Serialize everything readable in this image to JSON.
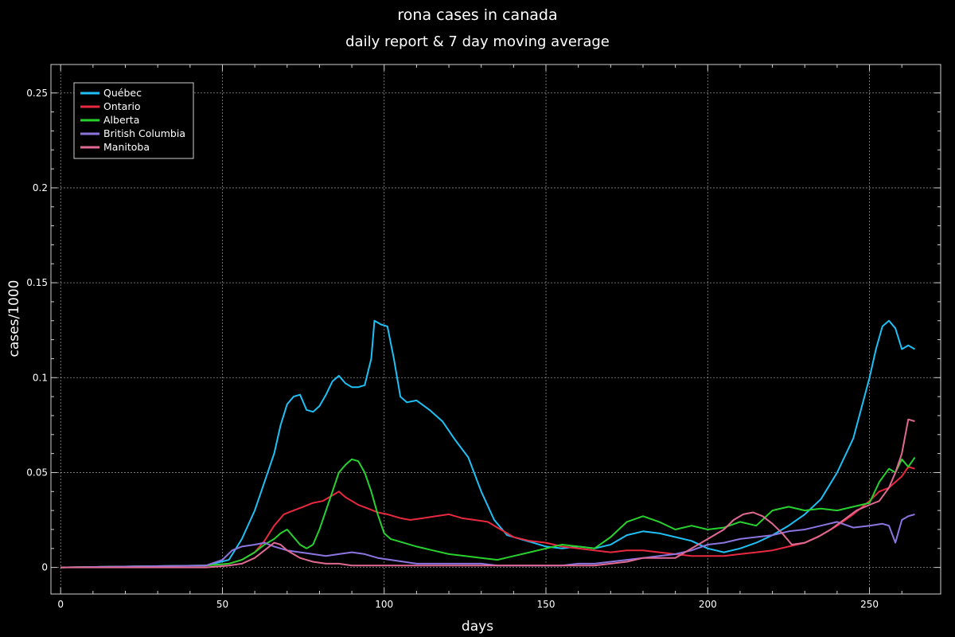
{
  "colors": {
    "background": "#000000",
    "foreground": "#ffffff",
    "grid": "#ffffff",
    "frame": "#d0d0d0"
  },
  "chart_data": {
    "type": "line",
    "title": "rona cases in canada",
    "subtitle": "daily report & 7 day moving average",
    "xlabel": "days",
    "ylabel": "cases/1000",
    "xlim": [
      -3,
      272
    ],
    "ylim": [
      -0.014,
      0.265
    ],
    "xticks": [
      0,
      50,
      100,
      150,
      200,
      250
    ],
    "xtick_labels": [
      "0",
      "50",
      "100",
      "150",
      "200",
      "250"
    ],
    "yticks": [
      0,
      0.05,
      0.1,
      0.15,
      0.2,
      0.25
    ],
    "ytick_labels": [
      "0",
      "0.05",
      "0.1",
      "0.15",
      "0.2",
      "0.25"
    ],
    "grid": true,
    "legend": "top-left",
    "series": [
      {
        "name": "Québec",
        "color": "#1ec0f5",
        "x": [
          0,
          45,
          52,
          56,
          60,
          63,
          66,
          68,
          70,
          72,
          74,
          76,
          78,
          80,
          82,
          84,
          86,
          88,
          90,
          92,
          94,
          96,
          97,
          99,
          101,
          103,
          105,
          107,
          110,
          114,
          118,
          122,
          126,
          130,
          134,
          138,
          142,
          146,
          150,
          155,
          160,
          165,
          170,
          175,
          180,
          185,
          190,
          195,
          200,
          205,
          210,
          215,
          220,
          225,
          230,
          235,
          240,
          245,
          250,
          252,
          254,
          256,
          258,
          260,
          262,
          264
        ],
        "values": [
          0,
          0.001,
          0.004,
          0.015,
          0.03,
          0.045,
          0.06,
          0.075,
          0.086,
          0.09,
          0.091,
          0.083,
          0.082,
          0.085,
          0.091,
          0.098,
          0.101,
          0.097,
          0.095,
          0.095,
          0.096,
          0.11,
          0.13,
          0.128,
          0.127,
          0.11,
          0.09,
          0.087,
          0.088,
          0.083,
          0.077,
          0.067,
          0.058,
          0.04,
          0.025,
          0.017,
          0.015,
          0.013,
          0.011,
          0.01,
          0.011,
          0.01,
          0.012,
          0.017,
          0.019,
          0.018,
          0.016,
          0.014,
          0.01,
          0.008,
          0.01,
          0.013,
          0.017,
          0.022,
          0.028,
          0.036,
          0.05,
          0.068,
          0.1,
          0.115,
          0.127,
          0.13,
          0.126,
          0.115,
          0.117,
          0.115
        ]
      },
      {
        "name": "Ontario",
        "color": "#e8293f",
        "x": [
          0,
          45,
          52,
          56,
          60,
          63,
          66,
          69,
          72,
          75,
          78,
          81,
          84,
          86,
          88,
          90,
          92,
          95,
          98,
          101,
          105,
          108,
          112,
          116,
          120,
          124,
          128,
          132,
          136,
          140,
          145,
          150,
          155,
          160,
          165,
          170,
          175,
          180,
          185,
          190,
          195,
          200,
          205,
          210,
          215,
          220,
          225,
          230,
          235,
          240,
          245,
          250,
          253,
          256,
          258,
          260,
          262,
          264
        ],
        "values": [
          0,
          0.001,
          0.002,
          0.004,
          0.008,
          0.014,
          0.022,
          0.028,
          0.03,
          0.032,
          0.034,
          0.035,
          0.038,
          0.04,
          0.037,
          0.035,
          0.033,
          0.031,
          0.029,
          0.028,
          0.026,
          0.025,
          0.026,
          0.027,
          0.028,
          0.026,
          0.025,
          0.024,
          0.02,
          0.016,
          0.014,
          0.013,
          0.011,
          0.01,
          0.009,
          0.008,
          0.009,
          0.009,
          0.008,
          0.007,
          0.006,
          0.006,
          0.006,
          0.007,
          0.008,
          0.009,
          0.011,
          0.013,
          0.017,
          0.022,
          0.028,
          0.035,
          0.04,
          0.042,
          0.045,
          0.048,
          0.053,
          0.052
        ]
      },
      {
        "name": "Alberta",
        "color": "#28d12e",
        "x": [
          0,
          45,
          52,
          56,
          60,
          63,
          66,
          68,
          70,
          72,
          74,
          76,
          78,
          80,
          82,
          84,
          86,
          88,
          90,
          92,
          94,
          96,
          98,
          100,
          102,
          106,
          110,
          115,
          120,
          125,
          130,
          135,
          140,
          145,
          150,
          155,
          160,
          165,
          170,
          175,
          180,
          185,
          190,
          195,
          200,
          205,
          210,
          215,
          220,
          225,
          230,
          235,
          240,
          245,
          250,
          253,
          256,
          258,
          260,
          262,
          264
        ],
        "values": [
          0,
          0.001,
          0.002,
          0.004,
          0.008,
          0.012,
          0.015,
          0.018,
          0.02,
          0.016,
          0.012,
          0.01,
          0.012,
          0.02,
          0.03,
          0.04,
          0.05,
          0.054,
          0.057,
          0.056,
          0.05,
          0.04,
          0.028,
          0.018,
          0.015,
          0.013,
          0.011,
          0.009,
          0.007,
          0.006,
          0.005,
          0.004,
          0.006,
          0.008,
          0.01,
          0.012,
          0.011,
          0.01,
          0.016,
          0.024,
          0.027,
          0.024,
          0.02,
          0.022,
          0.02,
          0.021,
          0.024,
          0.022,
          0.03,
          0.032,
          0.03,
          0.031,
          0.03,
          0.032,
          0.034,
          0.045,
          0.052,
          0.05,
          0.057,
          0.053,
          0.058
        ]
      },
      {
        "name": "British Columbia",
        "color": "#8c75df",
        "x": [
          0,
          45,
          50,
          53,
          56,
          60,
          63,
          66,
          70,
          74,
          78,
          82,
          86,
          90,
          94,
          98,
          102,
          106,
          110,
          115,
          120,
          125,
          130,
          135,
          140,
          145,
          150,
          155,
          160,
          165,
          170,
          175,
          180,
          185,
          190,
          195,
          200,
          205,
          210,
          215,
          220,
          225,
          230,
          235,
          240,
          245,
          250,
          254,
          256,
          258,
          260,
          262,
          264
        ],
        "values": [
          0,
          0.001,
          0.004,
          0.009,
          0.011,
          0.012,
          0.013,
          0.011,
          0.009,
          0.008,
          0.007,
          0.006,
          0.007,
          0.008,
          0.007,
          0.005,
          0.004,
          0.003,
          0.002,
          0.002,
          0.002,
          0.002,
          0.002,
          0.001,
          0.001,
          0.001,
          0.001,
          0.001,
          0.002,
          0.002,
          0.003,
          0.004,
          0.005,
          0.006,
          0.007,
          0.009,
          0.012,
          0.013,
          0.015,
          0.016,
          0.017,
          0.019,
          0.02,
          0.022,
          0.024,
          0.021,
          0.022,
          0.023,
          0.022,
          0.013,
          0.025,
          0.027,
          0.028
        ]
      },
      {
        "name": "Manitoba",
        "color": "#e06a94",
        "x": [
          0,
          45,
          52,
          56,
          60,
          63,
          66,
          68,
          70,
          74,
          78,
          82,
          86,
          90,
          95,
          100,
          105,
          110,
          115,
          120,
          125,
          130,
          135,
          140,
          145,
          150,
          155,
          160,
          165,
          170,
          175,
          180,
          185,
          190,
          195,
          200,
          205,
          208,
          211,
          214,
          217,
          220,
          223,
          226,
          230,
          234,
          238,
          242,
          246,
          250,
          253,
          256,
          258,
          260,
          262,
          264
        ],
        "values": [
          0,
          0,
          0.001,
          0.002,
          0.005,
          0.009,
          0.013,
          0.012,
          0.009,
          0.005,
          0.003,
          0.002,
          0.002,
          0.001,
          0.001,
          0.001,
          0.001,
          0.001,
          0.001,
          0.001,
          0.001,
          0.001,
          0.001,
          0.001,
          0.001,
          0.001,
          0.001,
          0.001,
          0.001,
          0.002,
          0.003,
          0.005,
          0.005,
          0.005,
          0.01,
          0.015,
          0.02,
          0.025,
          0.028,
          0.029,
          0.027,
          0.023,
          0.018,
          0.012,
          0.013,
          0.016,
          0.02,
          0.025,
          0.03,
          0.033,
          0.035,
          0.042,
          0.05,
          0.06,
          0.078,
          0.077
        ]
      }
    ]
  }
}
